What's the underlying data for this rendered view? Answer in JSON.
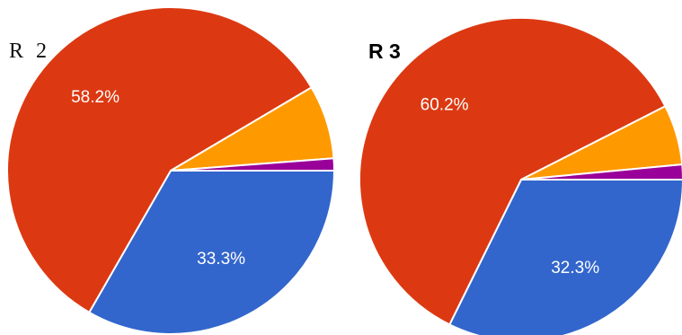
{
  "chart_data": [
    {
      "type": "pie",
      "title": "R 2",
      "series": [
        {
          "value": 33.3,
          "label": "33.3%",
          "color": "#3366cc"
        },
        {
          "value": 58.2,
          "label": "58.2%",
          "color": "#dc3912"
        },
        {
          "value": 7.3,
          "label": "",
          "color": "#ff9900"
        },
        {
          "value": 1.2,
          "label": "",
          "color": "#990099"
        }
      ]
    },
    {
      "type": "pie",
      "title": "R 3",
      "series": [
        {
          "value": 32.3,
          "label": "32.3%",
          "color": "#3366cc"
        },
        {
          "value": 60.2,
          "label": "60.2%",
          "color": "#dc3912"
        },
        {
          "value": 6.0,
          "label": "",
          "color": "#ff9900"
        },
        {
          "value": 1.5,
          "label": "",
          "color": "#990099"
        }
      ]
    }
  ]
}
